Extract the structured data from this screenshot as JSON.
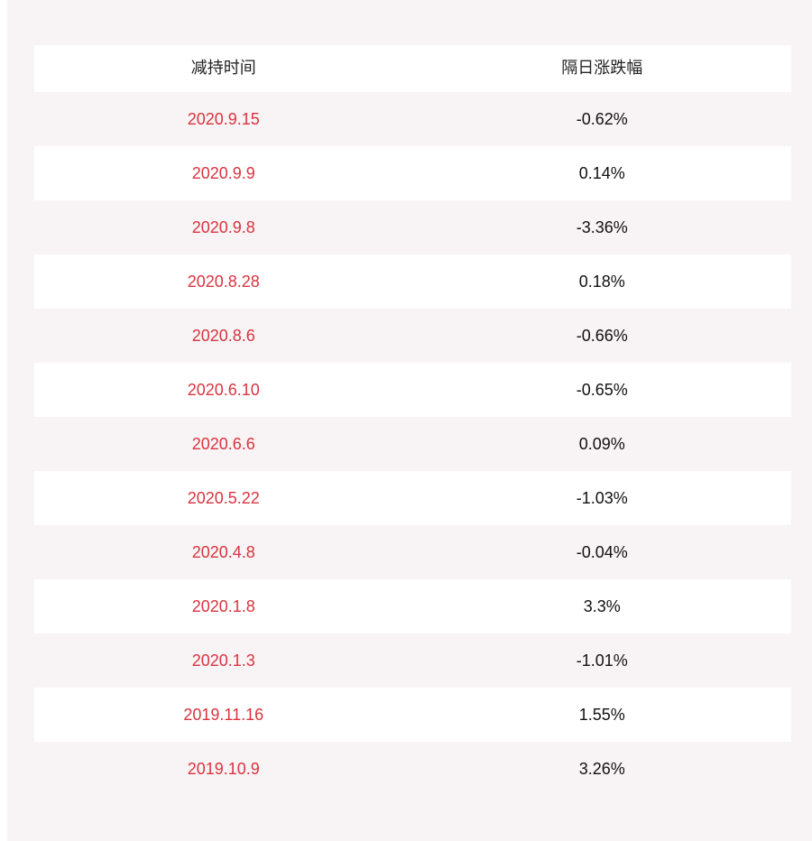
{
  "table": {
    "headers": [
      "减持时间",
      "隔日涨跌幅"
    ],
    "rows": [
      {
        "date": "2020.9.15",
        "change": "-0.62%"
      },
      {
        "date": "2020.9.9",
        "change": "0.14%"
      },
      {
        "date": "2020.9.8",
        "change": "-3.36%"
      },
      {
        "date": "2020.8.28",
        "change": "0.18%"
      },
      {
        "date": "2020.8.6",
        "change": "-0.66%"
      },
      {
        "date": "2020.6.10",
        "change": "-0.65%"
      },
      {
        "date": "2020.6.6",
        "change": "0.09%"
      },
      {
        "date": "2020.5.22",
        "change": "-1.03%"
      },
      {
        "date": "2020.4.8",
        "change": "-0.04%"
      },
      {
        "date": "2020.1.8",
        "change": "3.3%"
      },
      {
        "date": "2020.1.3",
        "change": "-1.01%"
      },
      {
        "date": "2019.11.16",
        "change": "1.55%"
      },
      {
        "date": "2019.10.9",
        "change": "3.26%"
      }
    ]
  },
  "colors": {
    "background": "#f8f3f4",
    "date_text": "#d9343f",
    "value_text": "#111111"
  }
}
